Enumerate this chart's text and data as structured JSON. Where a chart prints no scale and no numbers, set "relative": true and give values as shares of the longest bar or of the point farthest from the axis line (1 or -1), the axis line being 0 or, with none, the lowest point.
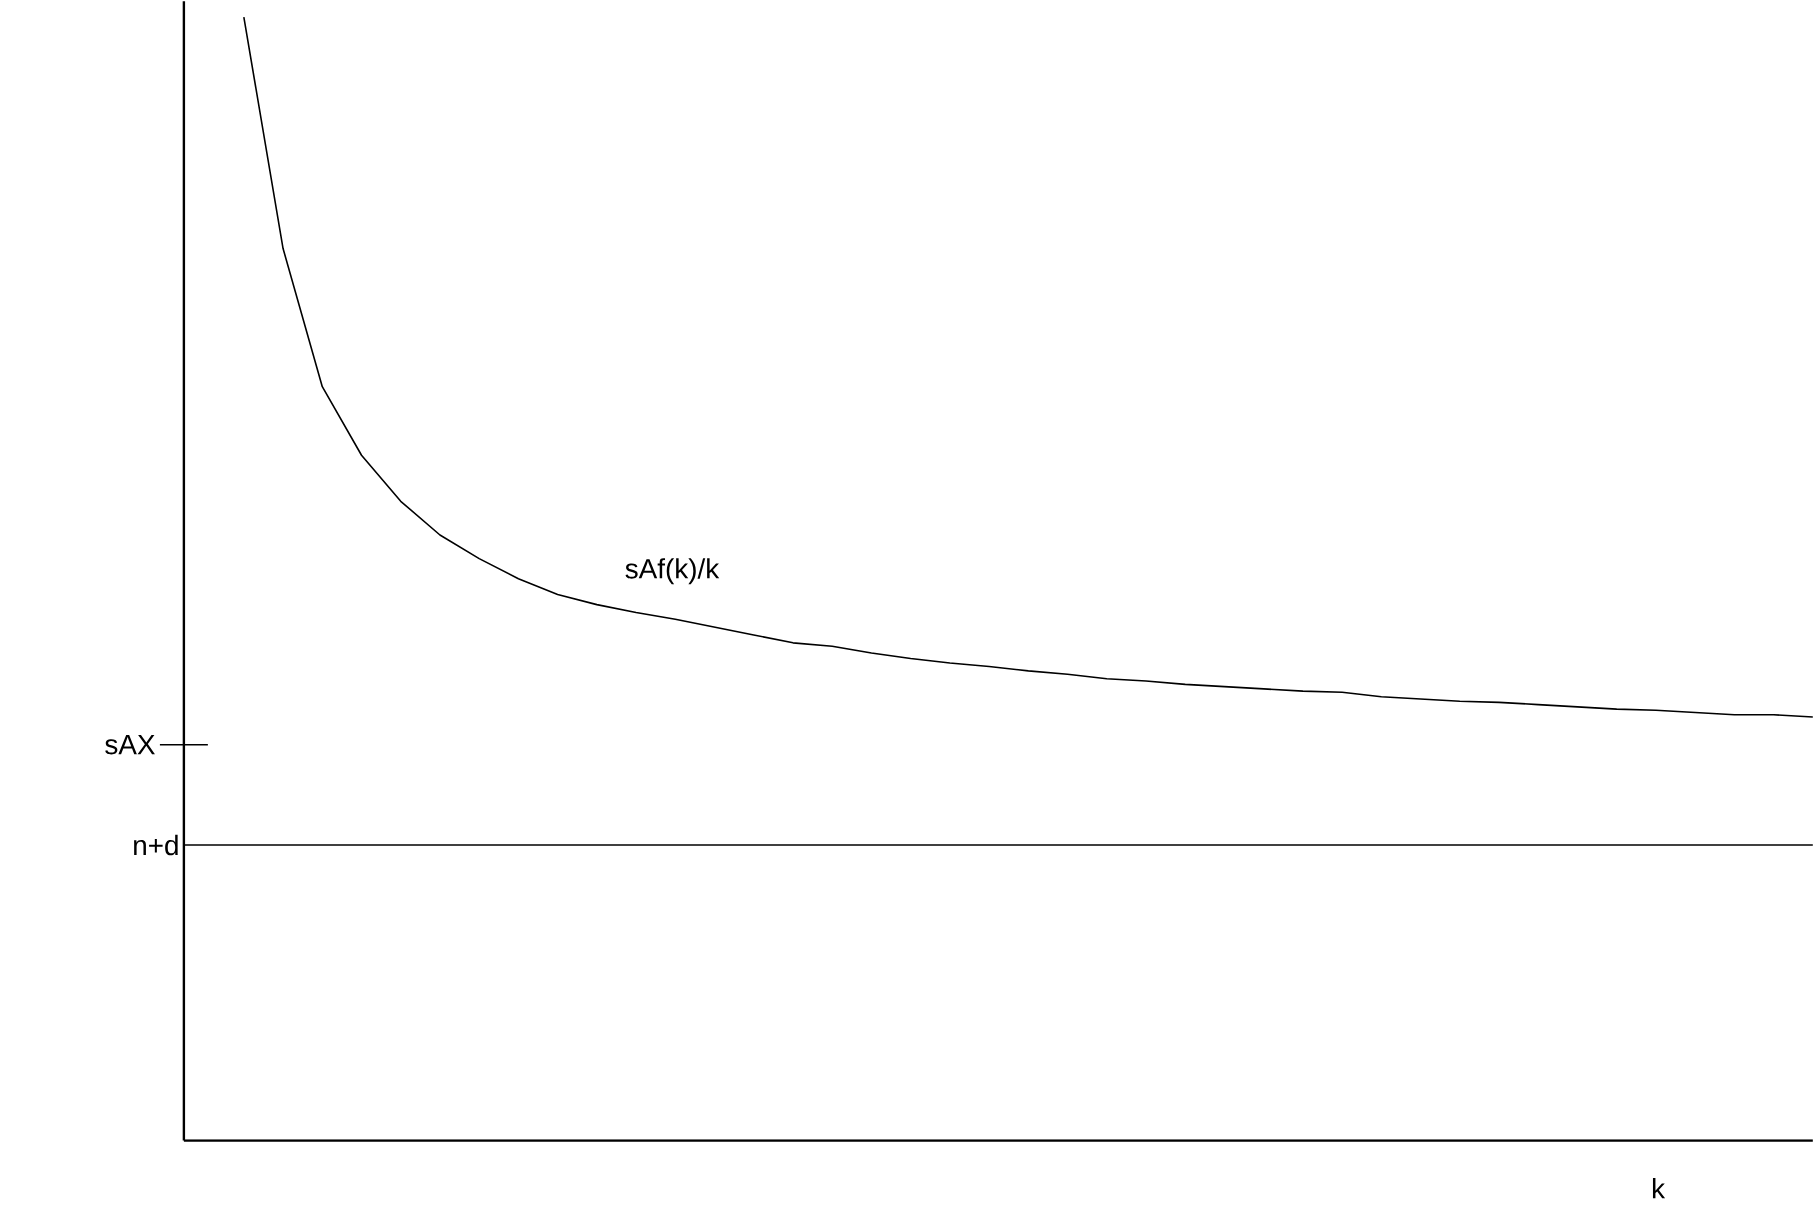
{
  "chart_data": {
    "type": "line",
    "relative": true,
    "xlabel": "k",
    "categories": [
      null,
      null,
      null,
      null,
      null,
      null,
      null,
      null,
      null,
      null,
      null,
      null,
      null,
      null,
      null,
      null,
      null,
      null,
      null,
      null,
      null,
      null,
      null,
      null,
      null,
      null,
      null,
      null,
      null,
      null,
      null,
      null,
      null,
      null,
      null,
      null,
      null,
      null,
      null,
      null,
      null
    ],
    "series": [
      {
        "name": "sAf(k)/k",
        "color": "#000000",
        "values": [
          1.0,
          0.794,
          0.671,
          0.61,
          0.569,
          0.539,
          0.518,
          0.5,
          0.486,
          0.477,
          0.47,
          0.464,
          0.457,
          0.45,
          0.443,
          0.44,
          0.434,
          0.429,
          0.425,
          0.422,
          0.418,
          0.415,
          0.411,
          0.409,
          0.406,
          0.404,
          0.402,
          0.4,
          0.399,
          0.395,
          0.393,
          0.391,
          0.39,
          0.388,
          0.386,
          0.384,
          0.383,
          0.381,
          0.379,
          0.379,
          0.377
        ]
      }
    ],
    "ref_lines": [
      {
        "axis": "y",
        "value": 0.263,
        "label": "n+d"
      }
    ],
    "annotations": [
      "sAX"
    ],
    "marker": "none",
    "line_style": "solid"
  }
}
